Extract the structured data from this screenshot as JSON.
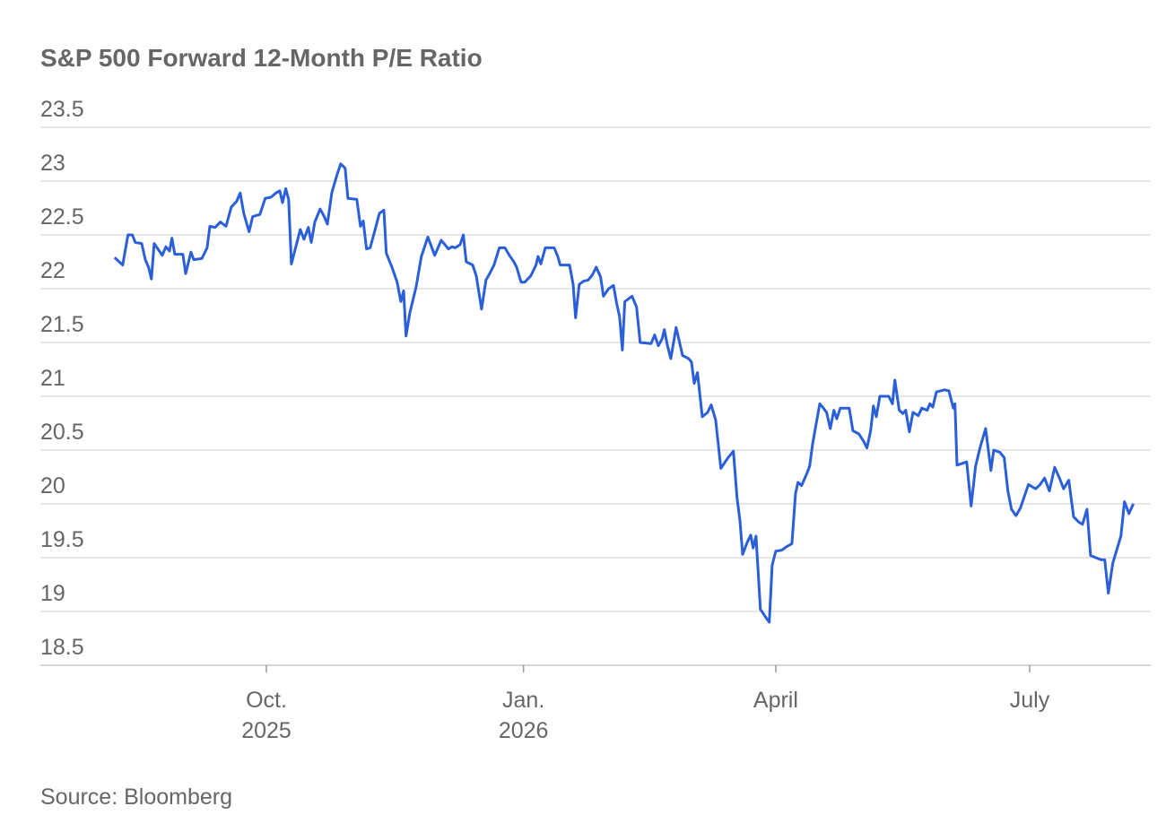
{
  "chart_data": {
    "type": "line",
    "title": "S&P 500 Forward 12-Month P/E Ratio",
    "source": "Source: Bloomberg",
    "color": "#2b5fd9",
    "grid": true,
    "ylim": [
      18.5,
      23.5
    ],
    "yticks": [
      23.5,
      23,
      22.5,
      22,
      21.5,
      21,
      20.5,
      20,
      19.5,
      19,
      18.5
    ],
    "xlim": [
      -18.4,
      256.7
    ],
    "xticks": [
      {
        "value": 37.6,
        "label": "Oct.\n2025"
      },
      {
        "value": 101.3,
        "label": "Jan.\n2026"
      },
      {
        "value": 163.8,
        "label": "April"
      },
      {
        "value": 226.7,
        "label": "July"
      }
    ],
    "x": [
      0,
      2,
      3.3,
      4.4,
      5.1,
      6.7,
      7.6,
      8.4,
      9.1,
      9.8,
      11.8,
      12.7,
      13.6,
      14.2,
      14.9,
      16.9,
      17.6,
      18.9,
      19.6,
      21.6,
      22.9,
      23.6,
      24.9,
      26.2,
      27.6,
      28.9,
      30.2,
      31.1,
      32,
      33.3,
      34.2,
      36,
      37.3,
      38.7,
      40,
      40.9,
      41.6,
      42.4,
      43.1,
      43.8,
      46,
      46.9,
      48,
      48.7,
      49.6,
      50.9,
      51.8,
      52.7,
      53.8,
      55.1,
      56,
      57.1,
      57.8,
      60,
      60.9,
      61.6,
      62.4,
      63.3,
      64.4,
      65.6,
      66.7,
      67.3,
      68.7,
      70,
      70.9,
      71.6,
      72.2,
      73.1,
      74.7,
      76,
      77.6,
      79.3,
      80.9,
      82.7,
      83.6,
      84.4,
      85.6,
      86.4,
      87.1,
      88.7,
      89.6,
      90.9,
      92,
      92.9,
      94,
      95.3,
      96.7,
      97.8,
      98.9,
      99.6,
      100.7,
      101.6,
      103.1,
      104.4,
      104.9,
      105.6,
      106.7,
      108.9,
      109.8,
      110.4,
      112.7,
      113.6,
      114.2,
      115.1,
      116.2,
      117.3,
      118.4,
      119.3,
      120.4,
      121.1,
      122.4,
      123.6,
      124.4,
      125.1,
      125.8,
      126.4,
      128.2,
      129.3,
      130.2,
      132.9,
      133.8,
      134.7,
      135.6,
      136.2,
      136.9,
      137.8,
      139.1,
      140.7,
      142.2,
      142.9,
      143.6,
      144.4,
      145.6,
      146.9,
      147.8,
      148.9,
      150.2,
      152,
      153.3,
      154.2,
      154.9,
      155.6,
      156.7,
      157.6,
      158.2,
      158.9,
      160,
      161.6,
      162.2,
      162.9,
      163.8,
      165.3,
      166.4,
      167.8,
      168.7,
      169.3,
      170.2,
      171.6,
      172.2,
      172.9,
      173.6,
      174.7,
      175.6,
      176.4,
      177.3,
      178.2,
      178.9,
      179.8,
      182,
      182.9,
      184.4,
      185.6,
      186.4,
      187.3,
      188,
      188.7,
      189.6,
      191.8,
      192.7,
      193.3,
      194.4,
      195.3,
      196,
      196.9,
      197.8,
      199.1,
      200,
      201.3,
      202,
      202.7,
      203.6,
      205.6,
      206.7,
      207.8,
      208.2,
      208.7,
      211.1,
      212.2,
      213.3,
      214.4,
      215.8,
      217.1,
      217.8,
      219.3,
      220.4,
      221.3,
      222.2,
      223.3,
      224.4,
      225.3,
      226.4,
      228.2,
      229.3,
      230.4,
      231.6,
      232.9,
      234.2,
      235.1,
      236.4,
      237.6,
      238.9,
      239.8,
      240.9,
      241.8,
      244.4,
      245.3,
      246.2,
      247.3,
      249.3,
      250.2,
      251.3,
      252.4
    ],
    "values": [
      22.29,
      22.22,
      22.5,
      22.5,
      22.43,
      22.42,
      22.27,
      22.2,
      22.09,
      22.42,
      22.31,
      22.39,
      22.35,
      22.47,
      22.32,
      22.32,
      22.14,
      22.34,
      22.27,
      22.28,
      22.38,
      22.58,
      22.57,
      22.62,
      22.58,
      22.76,
      22.81,
      22.89,
      22.7,
      22.53,
      22.67,
      22.69,
      22.84,
      22.85,
      22.89,
      22.91,
      22.8,
      22.93,
      22.83,
      22.23,
      22.55,
      22.46,
      22.57,
      22.43,
      22.62,
      22.74,
      22.68,
      22.6,
      22.89,
      23.06,
      23.16,
      23.12,
      22.84,
      22.83,
      22.58,
      22.63,
      22.37,
      22.38,
      22.53,
      22.7,
      22.73,
      22.33,
      22.2,
      22.06,
      21.88,
      21.98,
      21.56,
      21.77,
      22.02,
      22.3,
      22.48,
      22.31,
      22.45,
      22.37,
      22.39,
      22.38,
      22.41,
      22.5,
      22.25,
      22.22,
      22.12,
      21.81,
      22.08,
      22.14,
      22.22,
      22.38,
      22.38,
      22.31,
      22.25,
      22.2,
      22.06,
      22.06,
      22.12,
      22.22,
      22.3,
      22.23,
      22.38,
      22.38,
      22.3,
      22.22,
      22.22,
      22.04,
      21.73,
      22.04,
      22.07,
      22.08,
      22.13,
      22.2,
      22.11,
      21.93,
      22.0,
      22.03,
      21.86,
      21.74,
      21.43,
      21.88,
      21.93,
      21.83,
      21.5,
      21.49,
      21.57,
      21.47,
      21.53,
      21.62,
      21.48,
      21.35,
      21.64,
      21.38,
      21.35,
      21.32,
      21.12,
      21.22,
      20.81,
      20.85,
      20.92,
      20.78,
      20.33,
      20.43,
      20.49,
      20.06,
      19.85,
      19.53,
      19.64,
      19.71,
      19.59,
      19.7,
      19.02,
      18.93,
      18.9,
      19.43,
      19.56,
      19.57,
      19.6,
      19.63,
      20.1,
      20.2,
      20.17,
      20.29,
      20.35,
      20.55,
      20.7,
      20.93,
      20.89,
      20.85,
      20.7,
      20.87,
      20.79,
      20.89,
      20.89,
      20.68,
      20.65,
      20.58,
      20.52,
      20.68,
      20.91,
      20.81,
      21.0,
      21.0,
      20.93,
      21.15,
      20.87,
      20.84,
      20.87,
      20.67,
      20.85,
      20.82,
      20.89,
      20.87,
      20.93,
      20.9,
      21.04,
      21.06,
      21.05,
      20.89,
      20.93,
      20.36,
      20.39,
      19.98,
      20.35,
      20.52,
      20.7,
      20.31,
      20.5,
      20.48,
      20.43,
      20.12,
      19.95,
      19.89,
      19.96,
      20.06,
      20.18,
      20.14,
      20.18,
      20.24,
      20.12,
      20.34,
      20.23,
      20.14,
      20.22,
      19.88,
      19.83,
      19.81,
      19.95,
      19.52,
      19.48,
      19.48,
      19.17,
      19.45,
      19.7,
      20.02,
      19.91,
      20.0
    ]
  }
}
